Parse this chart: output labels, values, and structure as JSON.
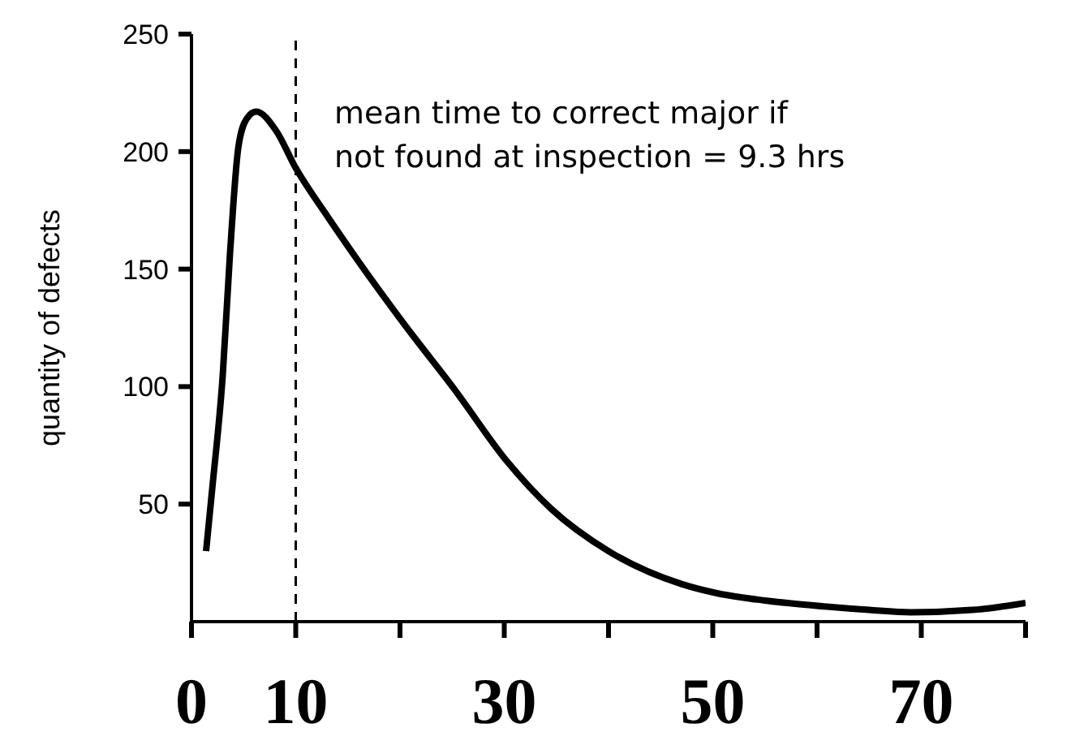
{
  "chart_data": {
    "type": "line",
    "ylabel": "quantity of defects",
    "x": [
      1.4,
      2,
      3,
      3.7,
      4.5,
      5.3,
      6.2,
      8.1,
      10,
      12.8,
      15.9,
      20.5,
      25.2,
      30.3,
      34.5,
      40,
      47,
      50.5,
      55,
      59.4,
      65,
      69,
      74.9,
      80
    ],
    "series": [
      {
        "color": "#000000",
        "values": [
          30,
          57,
          105,
          157,
          202,
          214,
          217,
          209,
          193,
          174,
          154,
          126,
          99,
          68,
          48,
          30,
          16,
          12,
          9,
          7,
          5,
          4,
          5,
          8
        ]
      }
    ],
    "xlim": [
      0,
      80
    ],
    "xticks": [
      0,
      10,
      {
        "value": 20,
        "label": null
      },
      30,
      {
        "value": 40,
        "label": null
      },
      50,
      {
        "value": 60,
        "label": null
      },
      70,
      {
        "value": 80,
        "label": null
      }
    ],
    "ylim": [
      0,
      250
    ],
    "yticks": [
      50,
      100,
      150,
      200,
      250
    ],
    "ref_lines": [
      {
        "axis": "x",
        "value": 10,
        "line_style": "dashed",
        "color": "#000000"
      }
    ],
    "annotations": [
      "mean time to correct major if",
      "not found at inspection = 9.3 hrs"
    ],
    "grid": false,
    "legend": false,
    "marker": "none",
    "line_style": "solid"
  }
}
